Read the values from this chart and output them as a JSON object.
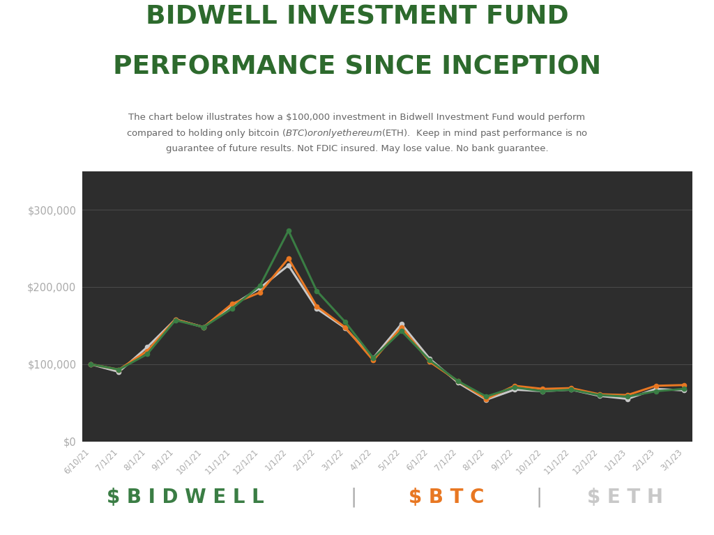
{
  "title_line1": "BIDWELL INVESTMENT FUND",
  "title_line2": "PERFORMANCE SINCE INCEPTION",
  "subtitle": "The chart below illustrates how a $100,000 investment in Bidwell Investment Fund would perform\ncompared to holding only bitcoin ($BTC) or only ethereum ($ETH).  Keep in mind past performance is no\nguarantee of future results. Not FDIC insured. May lose value. No bank guarantee.",
  "x_labels": [
    "6/10/21",
    "7/1/21",
    "8/1/21",
    "9/1/21",
    "10/1/21",
    "11/1/21",
    "12/1/21",
    "1/1/22",
    "2/1/22",
    "3/1/22",
    "4/1/22",
    "5/1/22",
    "6/1/22",
    "7/1/22",
    "8/1/22",
    "9/1/22",
    "10/1/22",
    "11/1/22",
    "12/1/22",
    "1/1/23",
    "2/1/23",
    "3/1/23"
  ],
  "bidwell": [
    100000,
    93000,
    113000,
    157000,
    148000,
    172000,
    202000,
    273000,
    195000,
    155000,
    108000,
    143000,
    105000,
    78000,
    58000,
    70000,
    65000,
    67000,
    60000,
    58000,
    65000,
    68000
  ],
  "btc": [
    100000,
    93000,
    117000,
    158000,
    148000,
    178000,
    193000,
    237000,
    175000,
    148000,
    105000,
    148000,
    103000,
    78000,
    55000,
    72000,
    68000,
    69000,
    61000,
    60000,
    72000,
    73000
  ],
  "eth": [
    100000,
    90000,
    122000,
    158000,
    148000,
    176000,
    199000,
    228000,
    172000,
    147000,
    108000,
    152000,
    107000,
    76000,
    54000,
    67000,
    65000,
    67000,
    59000,
    55000,
    68000,
    66000
  ],
  "bidwell_color": "#3a7d44",
  "btc_color": "#e87722",
  "eth_color": "#c8c8c8",
  "bg_color": "#2d2d2d",
  "title_color": "#2d6a2d",
  "subtitle_color": "#666666",
  "axis_label_color": "#aaaaaa",
  "grid_color": "#555555",
  "white": "#ffffff",
  "ylim_max": 350000,
  "yticks": [
    0,
    100000,
    200000,
    300000
  ],
  "ytick_labels": [
    "$0",
    "$100,000",
    "$200,000",
    "$300,000"
  ],
  "legend_bidwell": "$ B I D W E L L",
  "legend_btc": "$ B T C",
  "legend_eth": "$ E T H",
  "legend_sep": "|"
}
